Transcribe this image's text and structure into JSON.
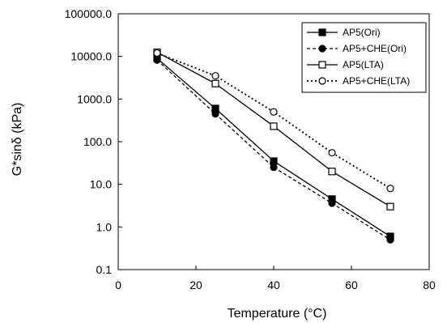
{
  "chart_data": {
    "type": "line",
    "xlabel": "Temperature (°C)",
    "ylabel": "G*sinδ (kPa)",
    "xlim": [
      0,
      80
    ],
    "ylim": [
      0.1,
      100000
    ],
    "yscale": "log",
    "x_ticks": [
      "0",
      "20",
      "40",
      "60",
      "80"
    ],
    "y_ticks": [
      "0.1",
      "1.0",
      "10.0",
      "100.0",
      "1000.0",
      "10000.0",
      "100000.0"
    ],
    "grid": false,
    "legend_position": "top-right",
    "x": [
      10,
      25,
      40,
      55,
      70
    ],
    "series": [
      {
        "name": "AP5(Ori)",
        "values": [
          9000,
          600,
          35,
          4.5,
          0.6
        ],
        "line_style": "solid",
        "marker": "filled-square",
        "color": "#000000"
      },
      {
        "name": "AP5+CHE(Ori)",
        "values": [
          8200,
          450,
          25,
          3.6,
          0.5
        ],
        "line_style": "dashed",
        "marker": "filled-circle",
        "color": "#000000"
      },
      {
        "name": "AP5(LTA)",
        "values": [
          12500,
          2300,
          230,
          20,
          3
        ],
        "line_style": "solid",
        "marker": "open-square",
        "color": "#000000"
      },
      {
        "name": "AP5+CHE(LTA)",
        "values": [
          12000,
          3500,
          500,
          55,
          8
        ],
        "line_style": "dotted",
        "marker": "open-circle",
        "color": "#000000"
      }
    ]
  }
}
